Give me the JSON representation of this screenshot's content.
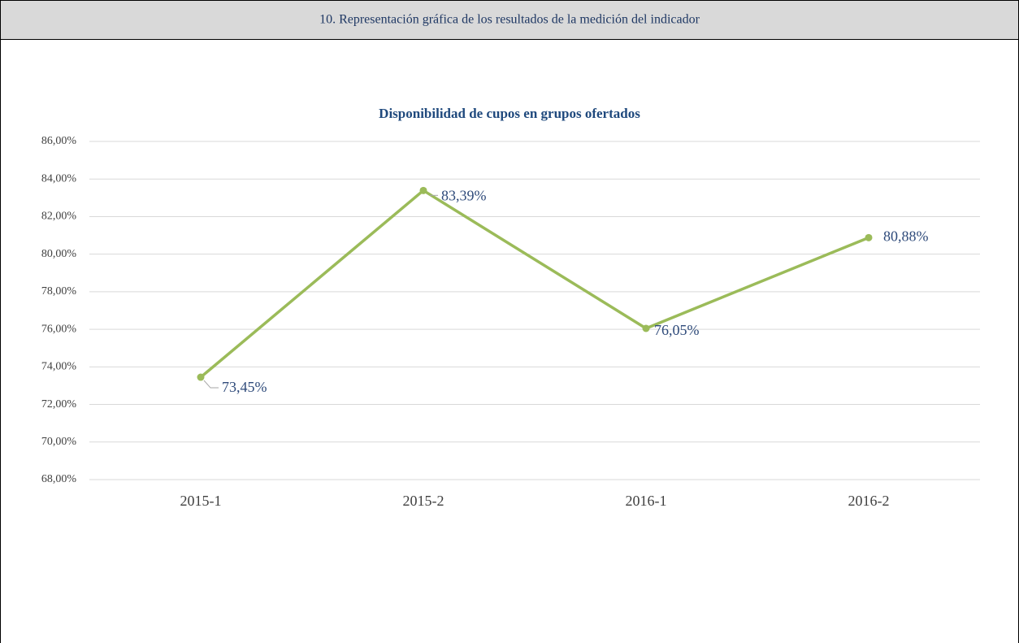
{
  "header": {
    "title": "10. Representación gráfica de los resultados de la medición del indicador"
  },
  "chart_data": {
    "type": "line",
    "title": "Disponibilidad de cupos en grupos ofertados",
    "categories": [
      "2015-1",
      "2015-2",
      "2016-1",
      "2016-2"
    ],
    "series": [
      {
        "name": "Disponibilidad",
        "color": "#9bbb59",
        "values": [
          73.45,
          83.39,
          76.05,
          80.88
        ],
        "value_labels": [
          "73,45%",
          "83,39%",
          "76,05%",
          "80,88%"
        ]
      }
    ],
    "ylim": [
      68,
      86
    ],
    "yticks": [
      {
        "value": 68,
        "label": "68,00%"
      },
      {
        "value": 70,
        "label": "70,00%"
      },
      {
        "value": 72,
        "label": "72,00%"
      },
      {
        "value": 74,
        "label": "74,00%"
      },
      {
        "value": 76,
        "label": "76,00%"
      },
      {
        "value": 78,
        "label": "78,00%"
      },
      {
        "value": 80,
        "label": "80,00%"
      },
      {
        "value": 82,
        "label": "82,00%"
      },
      {
        "value": 84,
        "label": "84,00%"
      },
      {
        "value": 86,
        "label": "86,00%"
      }
    ],
    "grid": true
  }
}
